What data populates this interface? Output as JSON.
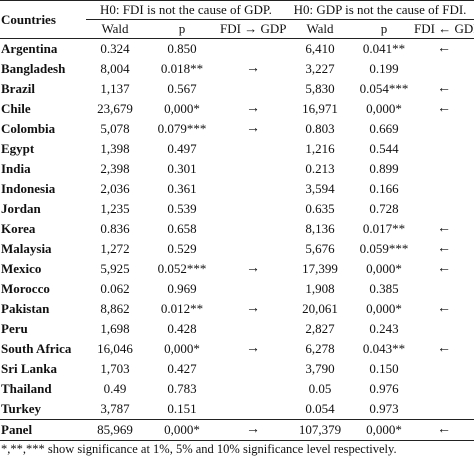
{
  "header": {
    "countries_label": "Countries",
    "group1_title": "H0: FDI is not the cause of GDP.",
    "group2_title": "H0: GDP is not the cause of FDI.",
    "wald_label": "Wald",
    "p_label": "p",
    "dir1_label": "FDI → GDP",
    "dir2_label": "FDI ← GDP"
  },
  "rows": [
    {
      "country": "Argentina",
      "wald1": "0.324",
      "p1": "0.850",
      "arrow1": "",
      "wald2": "6,410",
      "p2": "0.041**",
      "arrow2": "←"
    },
    {
      "country": "Bangladesh",
      "wald1": "8,004",
      "p1": "0.018**",
      "arrow1": "→",
      "wald2": "3,227",
      "p2": "0.199",
      "arrow2": ""
    },
    {
      "country": "Brazil",
      "wald1": "1,137",
      "p1": "0.567",
      "arrow1": "",
      "wald2": "5,830",
      "p2": "0.054***",
      "arrow2": "←"
    },
    {
      "country": "Chile",
      "wald1": "23,679",
      "p1": "0,000*",
      "arrow1": "→",
      "wald2": "16,971",
      "p2": "0,000*",
      "arrow2": "←"
    },
    {
      "country": "Colombia",
      "wald1": "5,078",
      "p1": "0.079***",
      "arrow1": "→",
      "wald2": "0.803",
      "p2": "0.669",
      "arrow2": ""
    },
    {
      "country": "Egypt",
      "wald1": "1,398",
      "p1": "0.497",
      "arrow1": "",
      "wald2": "1,216",
      "p2": "0.544",
      "arrow2": ""
    },
    {
      "country": "India",
      "wald1": "2,398",
      "p1": "0.301",
      "arrow1": "",
      "wald2": "0.213",
      "p2": "0.899",
      "arrow2": ""
    },
    {
      "country": "Indonesia",
      "wald1": "2,036",
      "p1": "0.361",
      "arrow1": "",
      "wald2": "3,594",
      "p2": "0.166",
      "arrow2": ""
    },
    {
      "country": "Jordan",
      "wald1": "1,235",
      "p1": "0.539",
      "arrow1": "",
      "wald2": "0.635",
      "p2": "0.728",
      "arrow2": ""
    },
    {
      "country": "Korea",
      "wald1": "0.836",
      "p1": "0.658",
      "arrow1": "",
      "wald2": "8,136",
      "p2": "0.017**",
      "arrow2": "←"
    },
    {
      "country": "Malaysia",
      "wald1": "1,272",
      "p1": "0.529",
      "arrow1": "",
      "wald2": "5,676",
      "p2": "0.059***",
      "arrow2": "←"
    },
    {
      "country": "Mexico",
      "wald1": "5,925",
      "p1": "0.052***",
      "arrow1": "→",
      "wald2": "17,399",
      "p2": "0,000*",
      "arrow2": "←"
    },
    {
      "country": "Morocco",
      "wald1": "0.062",
      "p1": "0.969",
      "arrow1": "",
      "wald2": "1,908",
      "p2": "0.385",
      "arrow2": ""
    },
    {
      "country": "Pakistan",
      "wald1": "8,862",
      "p1": "0.012**",
      "arrow1": "→",
      "wald2": "20,061",
      "p2": "0,000*",
      "arrow2": "←"
    },
    {
      "country": "Peru",
      "wald1": "1,698",
      "p1": "0.428",
      "arrow1": "",
      "wald2": "2,827",
      "p2": "0.243",
      "arrow2": ""
    },
    {
      "country": "South Africa",
      "wald1": "16,046",
      "p1": "0,000*",
      "arrow1": "→",
      "wald2": "6,278",
      "p2": "0.043**",
      "arrow2": "←"
    },
    {
      "country": "Sri Lanka",
      "wald1": "1,703",
      "p1": "0.427",
      "arrow1": "",
      "wald2": "3,790",
      "p2": "0.150",
      "arrow2": ""
    },
    {
      "country": "Thailand",
      "wald1": "0.49",
      "p1": "0.783",
      "arrow1": "",
      "wald2": "0.05",
      "p2": "0.976",
      "arrow2": ""
    },
    {
      "country": "Turkey",
      "wald1": "3,787",
      "p1": "0.151",
      "arrow1": "",
      "wald2": "0.054",
      "p2": "0.973",
      "arrow2": ""
    }
  ],
  "panel": {
    "country": "Panel",
    "wald1": "85,969",
    "p1": "0,000*",
    "arrow1": "→",
    "wald2": "107,379",
    "p2": "0,000*",
    "arrow2": "←"
  },
  "note": "*,**,*** show significance at 1%, 5% and 10% significance level respectively."
}
